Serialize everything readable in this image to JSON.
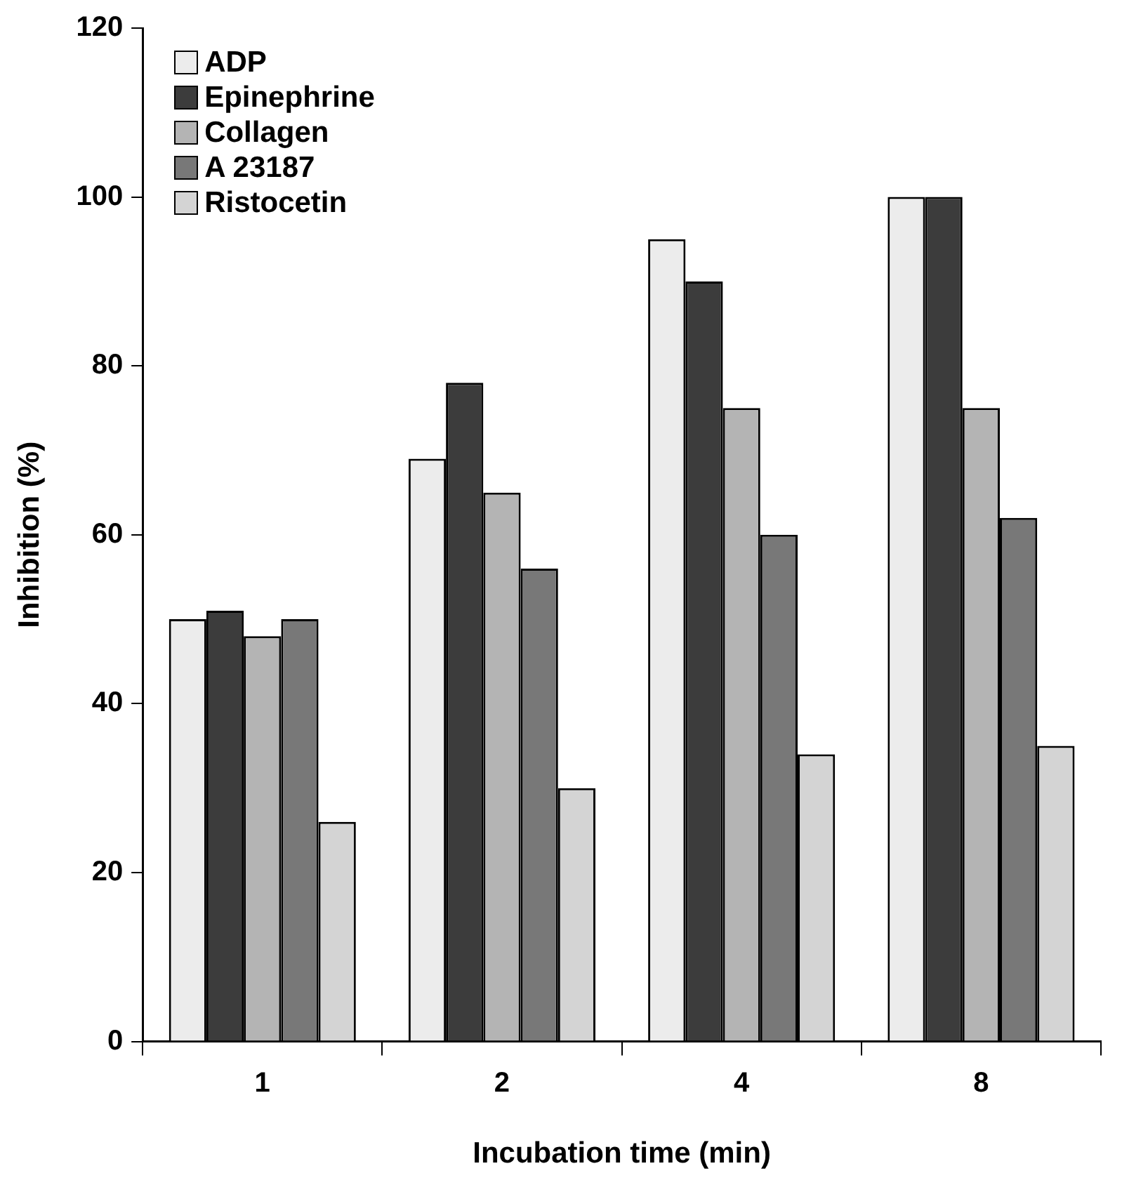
{
  "chart_data": {
    "type": "bar",
    "xlabel": "Incubation time (min)",
    "ylabel": "Inhibition (%)",
    "categories": [
      "1",
      "2",
      "4",
      "8"
    ],
    "series": [
      {
        "name": "ADP",
        "color": "#ececec",
        "values": [
          50,
          69,
          95,
          100
        ]
      },
      {
        "name": "Epinephrine",
        "color": "#3c3c3c",
        "values": [
          51,
          78,
          90,
          100
        ]
      },
      {
        "name": "Collagen",
        "color": "#b4b4b4",
        "values": [
          48,
          65,
          75,
          75
        ]
      },
      {
        "name": "A 23187",
        "color": "#787878",
        "values": [
          50,
          56,
          60,
          62
        ]
      },
      {
        "name": "Ristocetin",
        "color": "#d4d4d4",
        "values": [
          26,
          30,
          34,
          35
        ]
      }
    ],
    "ylim": [
      0,
      120
    ],
    "yticks": [
      0,
      20,
      40,
      60,
      80,
      100,
      120
    ],
    "grid": false,
    "legend": "top left"
  }
}
